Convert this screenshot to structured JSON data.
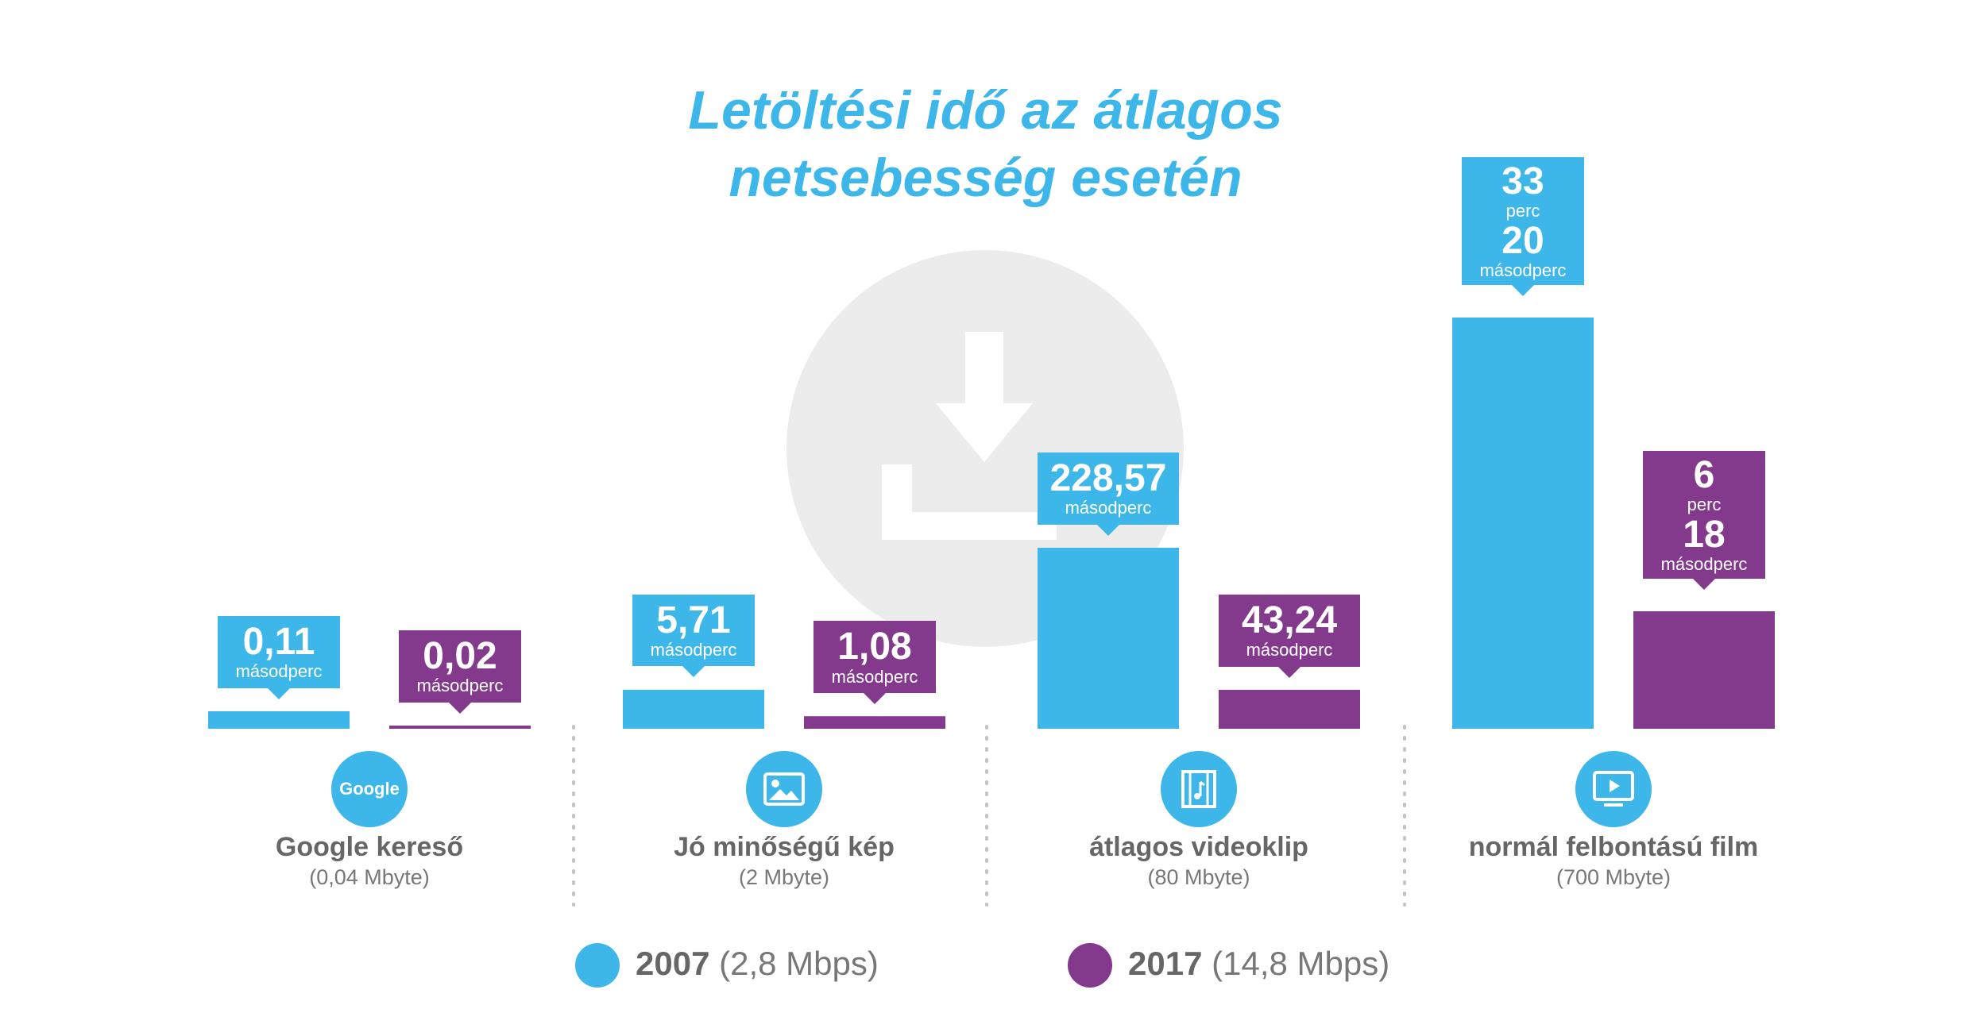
{
  "title_line1": "Letöltési idő az átlagos",
  "title_line2": "netsebesség esetén",
  "colors": {
    "y2007": "#3db6ea",
    "y2017": "#833a8c",
    "title": "#3db6ea",
    "bg_icon": "#ececec"
  },
  "chart_data": {
    "type": "bar",
    "categories": [
      "Google kereső",
      "Jó minőségű kép",
      "átlagos videoklip",
      "normál felbontású film"
    ],
    "category_sizes": [
      "(0,04 Mbyte)",
      "(2 Mbyte)",
      "(80 Mbyte)",
      "(700 Mbyte)"
    ],
    "category_icons": [
      "google-icon",
      "image-icon",
      "video-clip-icon",
      "film-play-icon"
    ],
    "series": [
      {
        "name": "2007",
        "speed": "(2,8 Mbps)",
        "values_seconds": [
          0.11,
          5.71,
          228.57,
          2000
        ]
      },
      {
        "name": "2017",
        "speed": "(14,8 Mbps)",
        "values_seconds": [
          0.02,
          1.08,
          43.24,
          378
        ]
      }
    ],
    "labels": [
      [
        {
          "lines": [
            [
              "0,11",
              "big"
            ],
            [
              "másodperc",
              "small"
            ]
          ]
        },
        {
          "lines": [
            [
              "0,02",
              "big"
            ],
            [
              "másodperc",
              "small"
            ]
          ]
        }
      ],
      [
        {
          "lines": [
            [
              "5,71",
              "big"
            ],
            [
              "másodperc",
              "small"
            ]
          ]
        },
        {
          "lines": [
            [
              "1,08",
              "big"
            ],
            [
              "másodperc",
              "small"
            ]
          ]
        }
      ],
      [
        {
          "lines": [
            [
              "228,57",
              "big"
            ],
            [
              "másodperc",
              "small"
            ]
          ]
        },
        {
          "lines": [
            [
              "43,24",
              "big"
            ],
            [
              "másodperc",
              "small"
            ]
          ]
        }
      ],
      [
        {
          "lines": [
            [
              "33",
              "big"
            ],
            [
              "perc",
              "small"
            ],
            [
              "20",
              "big"
            ],
            [
              "másodperc",
              "small"
            ]
          ]
        },
        {
          "lines": [
            [
              "6",
              "big"
            ],
            [
              "perc",
              "small"
            ],
            [
              "18",
              "big"
            ],
            [
              "másodperc",
              "small"
            ]
          ]
        }
      ]
    ],
    "google_icon_text": "Google"
  }
}
